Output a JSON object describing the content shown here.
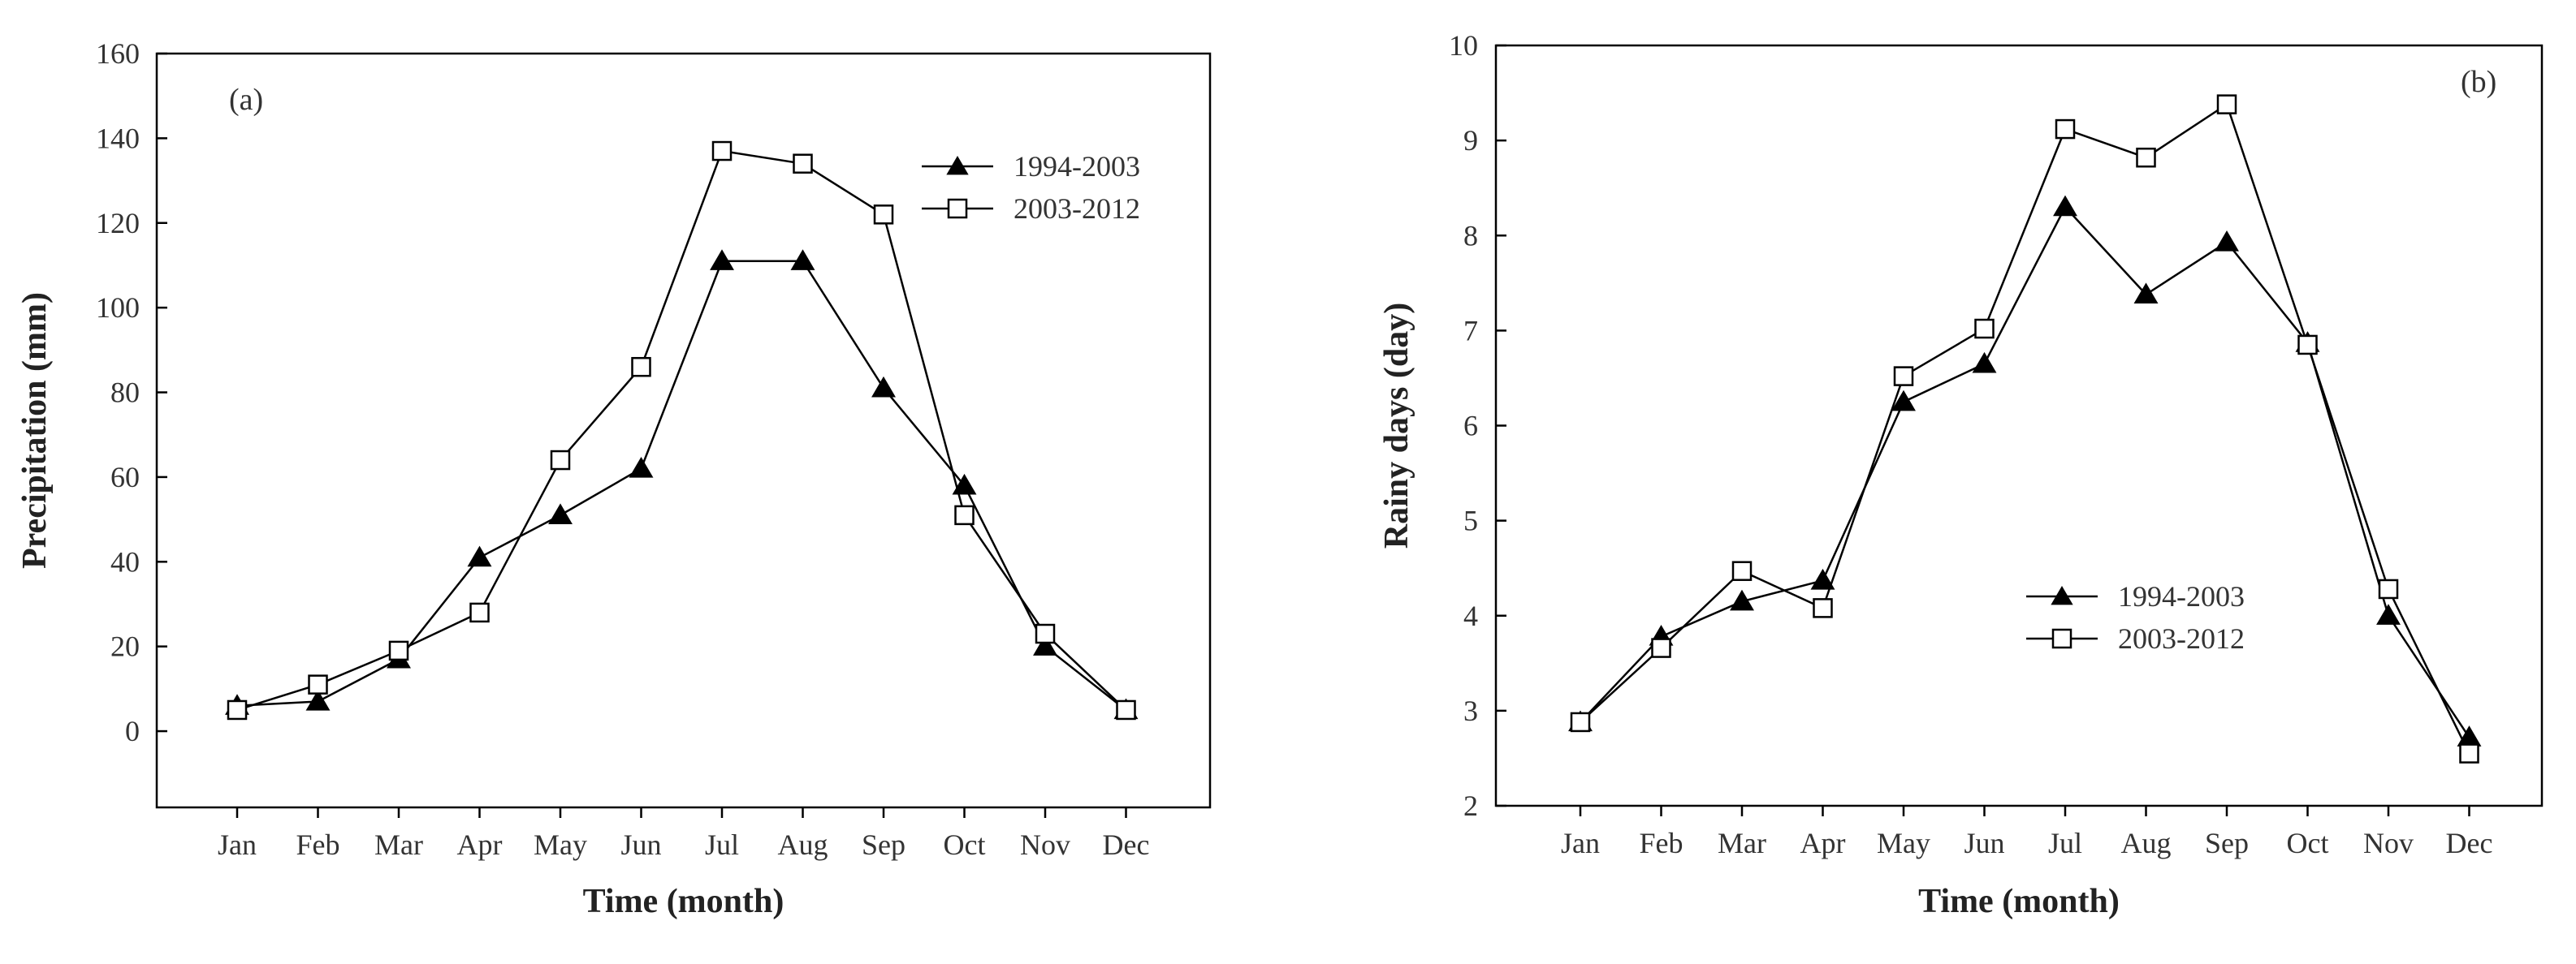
{
  "chart_data": [
    {
      "type": "line",
      "panel_label": "(a)",
      "title": "",
      "xlabel": "Time (month)",
      "ylabel": "Precipitation (mm)",
      "ylim": [
        -18,
        160
      ],
      "yticks": [
        0,
        20,
        40,
        60,
        80,
        100,
        120,
        140,
        160
      ],
      "categories": [
        "Jan",
        "Feb",
        "Mar",
        "Apr",
        "May",
        "Jun",
        "Jul",
        "Aug",
        "Sep",
        "Oct",
        "Nov",
        "Dec"
      ],
      "legend_position": "top-right",
      "series": [
        {
          "name": "1994-2003",
          "marker": "filled-triangle",
          "values": [
            6,
            7,
            17,
            41,
            51,
            62,
            111,
            111,
            81,
            58,
            20,
            5
          ]
        },
        {
          "name": "2003-2012",
          "marker": "open-square",
          "values": [
            5,
            11,
            19,
            28,
            64,
            86,
            137,
            134,
            122,
            51,
            23,
            5
          ]
        }
      ]
    },
    {
      "type": "line",
      "panel_label": "(b)",
      "title": "",
      "xlabel": "Time (month)",
      "ylabel": "Rainy days (day)",
      "ylim": [
        2,
        10
      ],
      "yticks": [
        2,
        3,
        4,
        5,
        6,
        7,
        8,
        9,
        10
      ],
      "categories": [
        "Jan",
        "Feb",
        "Mar",
        "Apr",
        "May",
        "Jun",
        "Jul",
        "Aug",
        "Sep",
        "Oct",
        "Nov",
        "Dec"
      ],
      "legend_position": "center",
      "series": [
        {
          "name": "1994-2003",
          "marker": "filled-triangle",
          "values": [
            2.88,
            3.78,
            4.15,
            4.37,
            6.25,
            6.65,
            8.3,
            7.38,
            7.93,
            6.87,
            4.0,
            2.72
          ]
        },
        {
          "name": "2003-2012",
          "marker": "open-square",
          "values": [
            2.88,
            3.66,
            4.47,
            4.08,
            6.52,
            7.02,
            9.12,
            8.82,
            9.38,
            6.85,
            4.28,
            2.55
          ]
        }
      ]
    }
  ]
}
